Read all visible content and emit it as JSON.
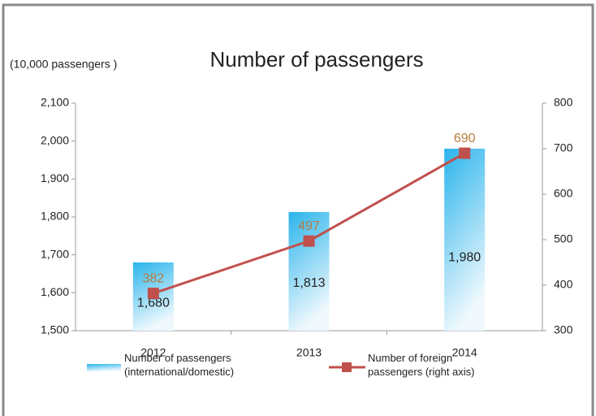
{
  "chart_data": {
    "type": "bar",
    "title": "Number of passengers",
    "ylabel": "(10,000 passengers )",
    "categories": [
      "2012",
      "2013",
      "2014"
    ],
    "series": [
      {
        "name": "Number of passengers (international/domestic)",
        "type": "bar",
        "color": "#2ab4ec",
        "values": [
          1680,
          1813,
          1980
        ],
        "value_labels": [
          "1,680",
          "1,813",
          "1,980"
        ]
      },
      {
        "name": "Number of foreign passengers (right axis)",
        "type": "line",
        "axis": "y2",
        "color": "#c0504d",
        "values": [
          382,
          497,
          690
        ]
      }
    ],
    "ylim": [
      1500,
      2100
    ],
    "yticks": [
      {
        "value": 1500,
        "label": "1,500"
      },
      {
        "value": 1600,
        "label": "1,600"
      },
      {
        "value": 1700,
        "label": "1,700"
      },
      {
        "value": 1800,
        "label": "1,800"
      },
      {
        "value": 1900,
        "label": "1,900"
      },
      {
        "value": 2000,
        "label": "2,000"
      },
      {
        "value": 2100,
        "label": "2,100"
      }
    ],
    "y2lim": [
      300,
      800
    ],
    "y2ticks": [
      300,
      400,
      500,
      600,
      700,
      800
    ],
    "grid": false
  }
}
